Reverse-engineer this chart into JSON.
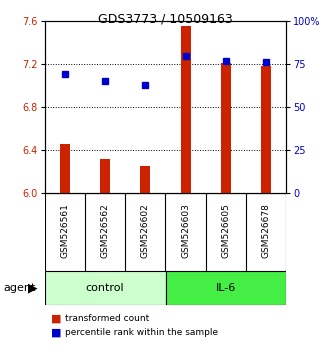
{
  "title": "GDS3773 / 10509163",
  "samples": [
    "GSM526561",
    "GSM526562",
    "GSM526602",
    "GSM526603",
    "GSM526605",
    "GSM526678"
  ],
  "groups": [
    "control",
    "control",
    "control",
    "IL-6",
    "IL-6",
    "IL-6"
  ],
  "transformed_count": [
    6.46,
    6.315,
    6.255,
    7.555,
    7.215,
    7.185
  ],
  "percentile_rank": [
    69,
    65,
    63,
    80,
    77,
    76
  ],
  "ylim_left": [
    6.0,
    7.6
  ],
  "ylim_right": [
    0,
    100
  ],
  "yticks_left": [
    6.0,
    6.4,
    6.8,
    7.2,
    7.6
  ],
  "yticks_right": [
    0,
    25,
    50,
    75,
    100
  ],
  "ytick_labels_right": [
    "0",
    "25",
    "50",
    "75",
    "100%"
  ],
  "bar_color": "#cc2200",
  "dot_color": "#0000cc",
  "control_color": "#ccffcc",
  "il6_color": "#44ee44",
  "background_color": "#ffffff",
  "xlabel_area_color": "#cccccc",
  "legend_bar_label": "transformed count",
  "legend_dot_label": "percentile rank within the sample"
}
